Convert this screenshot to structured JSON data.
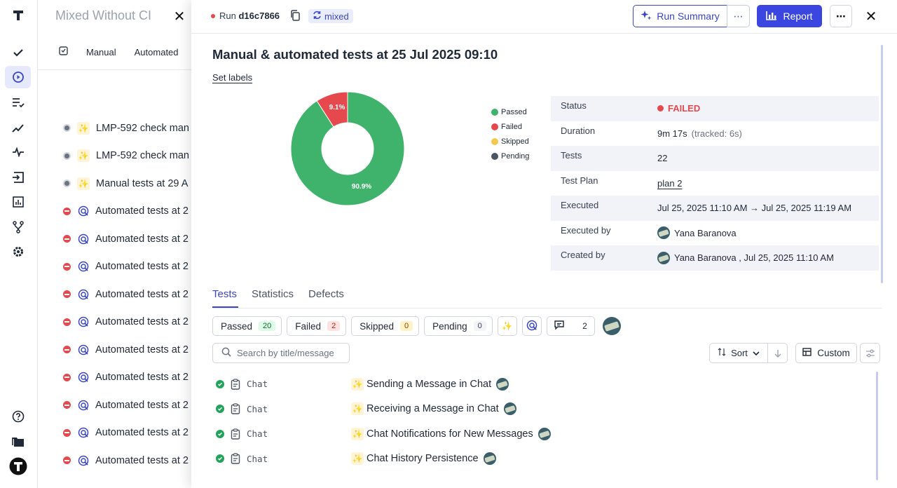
{
  "rail": {
    "items": [
      "logo-icon",
      "check-icon",
      "play-circle-icon",
      "list-check-icon",
      "chart-line-icon",
      "pulse-icon",
      "import-icon",
      "bar-chart-icon",
      "branch-icon",
      "gear-icon",
      "help-icon",
      "folder-icon",
      "brand-icon"
    ]
  },
  "background": {
    "title": "Mixed Without CI",
    "tabs": [
      "Manual",
      "Automated"
    ],
    "rows": [
      {
        "status": "pending",
        "kind": "manual",
        "label": "LMP-592 check man"
      },
      {
        "status": "pending",
        "kind": "manual",
        "label": "LMP-592 check man"
      },
      {
        "status": "pending",
        "kind": "manual",
        "label": "Manual tests at 29 A"
      },
      {
        "status": "failed",
        "kind": "auto",
        "label": "Automated tests at 2"
      },
      {
        "status": "failed",
        "kind": "auto",
        "label": "Automated tests at 2"
      },
      {
        "status": "failed",
        "kind": "auto",
        "label": "Automated tests at 2"
      },
      {
        "status": "failed",
        "kind": "auto",
        "label": "Automated tests at 2"
      },
      {
        "status": "failed",
        "kind": "auto",
        "label": "Automated tests at 2"
      },
      {
        "status": "failed",
        "kind": "auto",
        "label": "Automated tests at 2"
      },
      {
        "status": "failed",
        "kind": "auto",
        "label": "Automated tests at 2"
      },
      {
        "status": "failed",
        "kind": "auto",
        "label": "Automated tests at 2"
      },
      {
        "status": "failed",
        "kind": "auto",
        "label": "Automated tests at 2"
      },
      {
        "status": "failed",
        "kind": "auto",
        "label": "Automated tests at 2"
      }
    ]
  },
  "run": {
    "prefix": "Run",
    "id": "d16c7866",
    "type_badge": "mixed",
    "run_summary_label": "Run Summary",
    "report_label": "Report",
    "title": "Manual & automated tests at 25 Jul 2025 09:10",
    "set_labels": "Set labels"
  },
  "chart_data": {
    "type": "pie",
    "donut": true,
    "categories": [
      "Passed",
      "Failed",
      "Skipped",
      "Pending"
    ],
    "values": [
      90.9,
      9.1,
      0,
      0
    ],
    "labels": [
      "90.9%",
      "9.1%"
    ],
    "colors": [
      "#3fb36b",
      "#e5484d",
      "#f2c94c",
      "#4b5563"
    ],
    "legend_position": "right"
  },
  "info": [
    {
      "key": "Status",
      "value": "FAILED",
      "type": "status"
    },
    {
      "key": "Duration",
      "value": "9m 17s",
      "extra": "(tracked: 6s)",
      "type": "duration"
    },
    {
      "key": "Tests",
      "value": "22",
      "type": "text"
    },
    {
      "key": "Test Plan",
      "value": "plan 2",
      "type": "link"
    },
    {
      "key": "Executed",
      "value": "Jul 25, 2025 11:10 AM → Jul 25, 2025 11:19 AM",
      "type": "text"
    },
    {
      "key": "Executed by",
      "value": "Yana Baranova",
      "type": "user"
    },
    {
      "key": "Created by",
      "value": "Yana Baranova , Jul 25, 2025 11:10 AM",
      "type": "user"
    }
  ],
  "tabs": [
    "Tests",
    "Statistics",
    "Defects"
  ],
  "filters": {
    "passed": {
      "label": "Passed",
      "count": "20"
    },
    "failed": {
      "label": "Failed",
      "count": "2"
    },
    "skipped": {
      "label": "Skipped",
      "count": "0"
    },
    "pending": {
      "label": "Pending",
      "count": "0"
    },
    "comments_count": "2"
  },
  "search": {
    "placeholder": "Search by title/message"
  },
  "sort_label": "Sort",
  "custom_label": "Custom",
  "tests": [
    {
      "suite": "Chat",
      "title": "Sending a Message in Chat"
    },
    {
      "suite": "Chat",
      "title": "Receiving a Message in Chat"
    },
    {
      "suite": "Chat",
      "title": "Chat Notifications for New Messages"
    },
    {
      "suite": "Chat",
      "title": "Chat History Persistence"
    }
  ]
}
